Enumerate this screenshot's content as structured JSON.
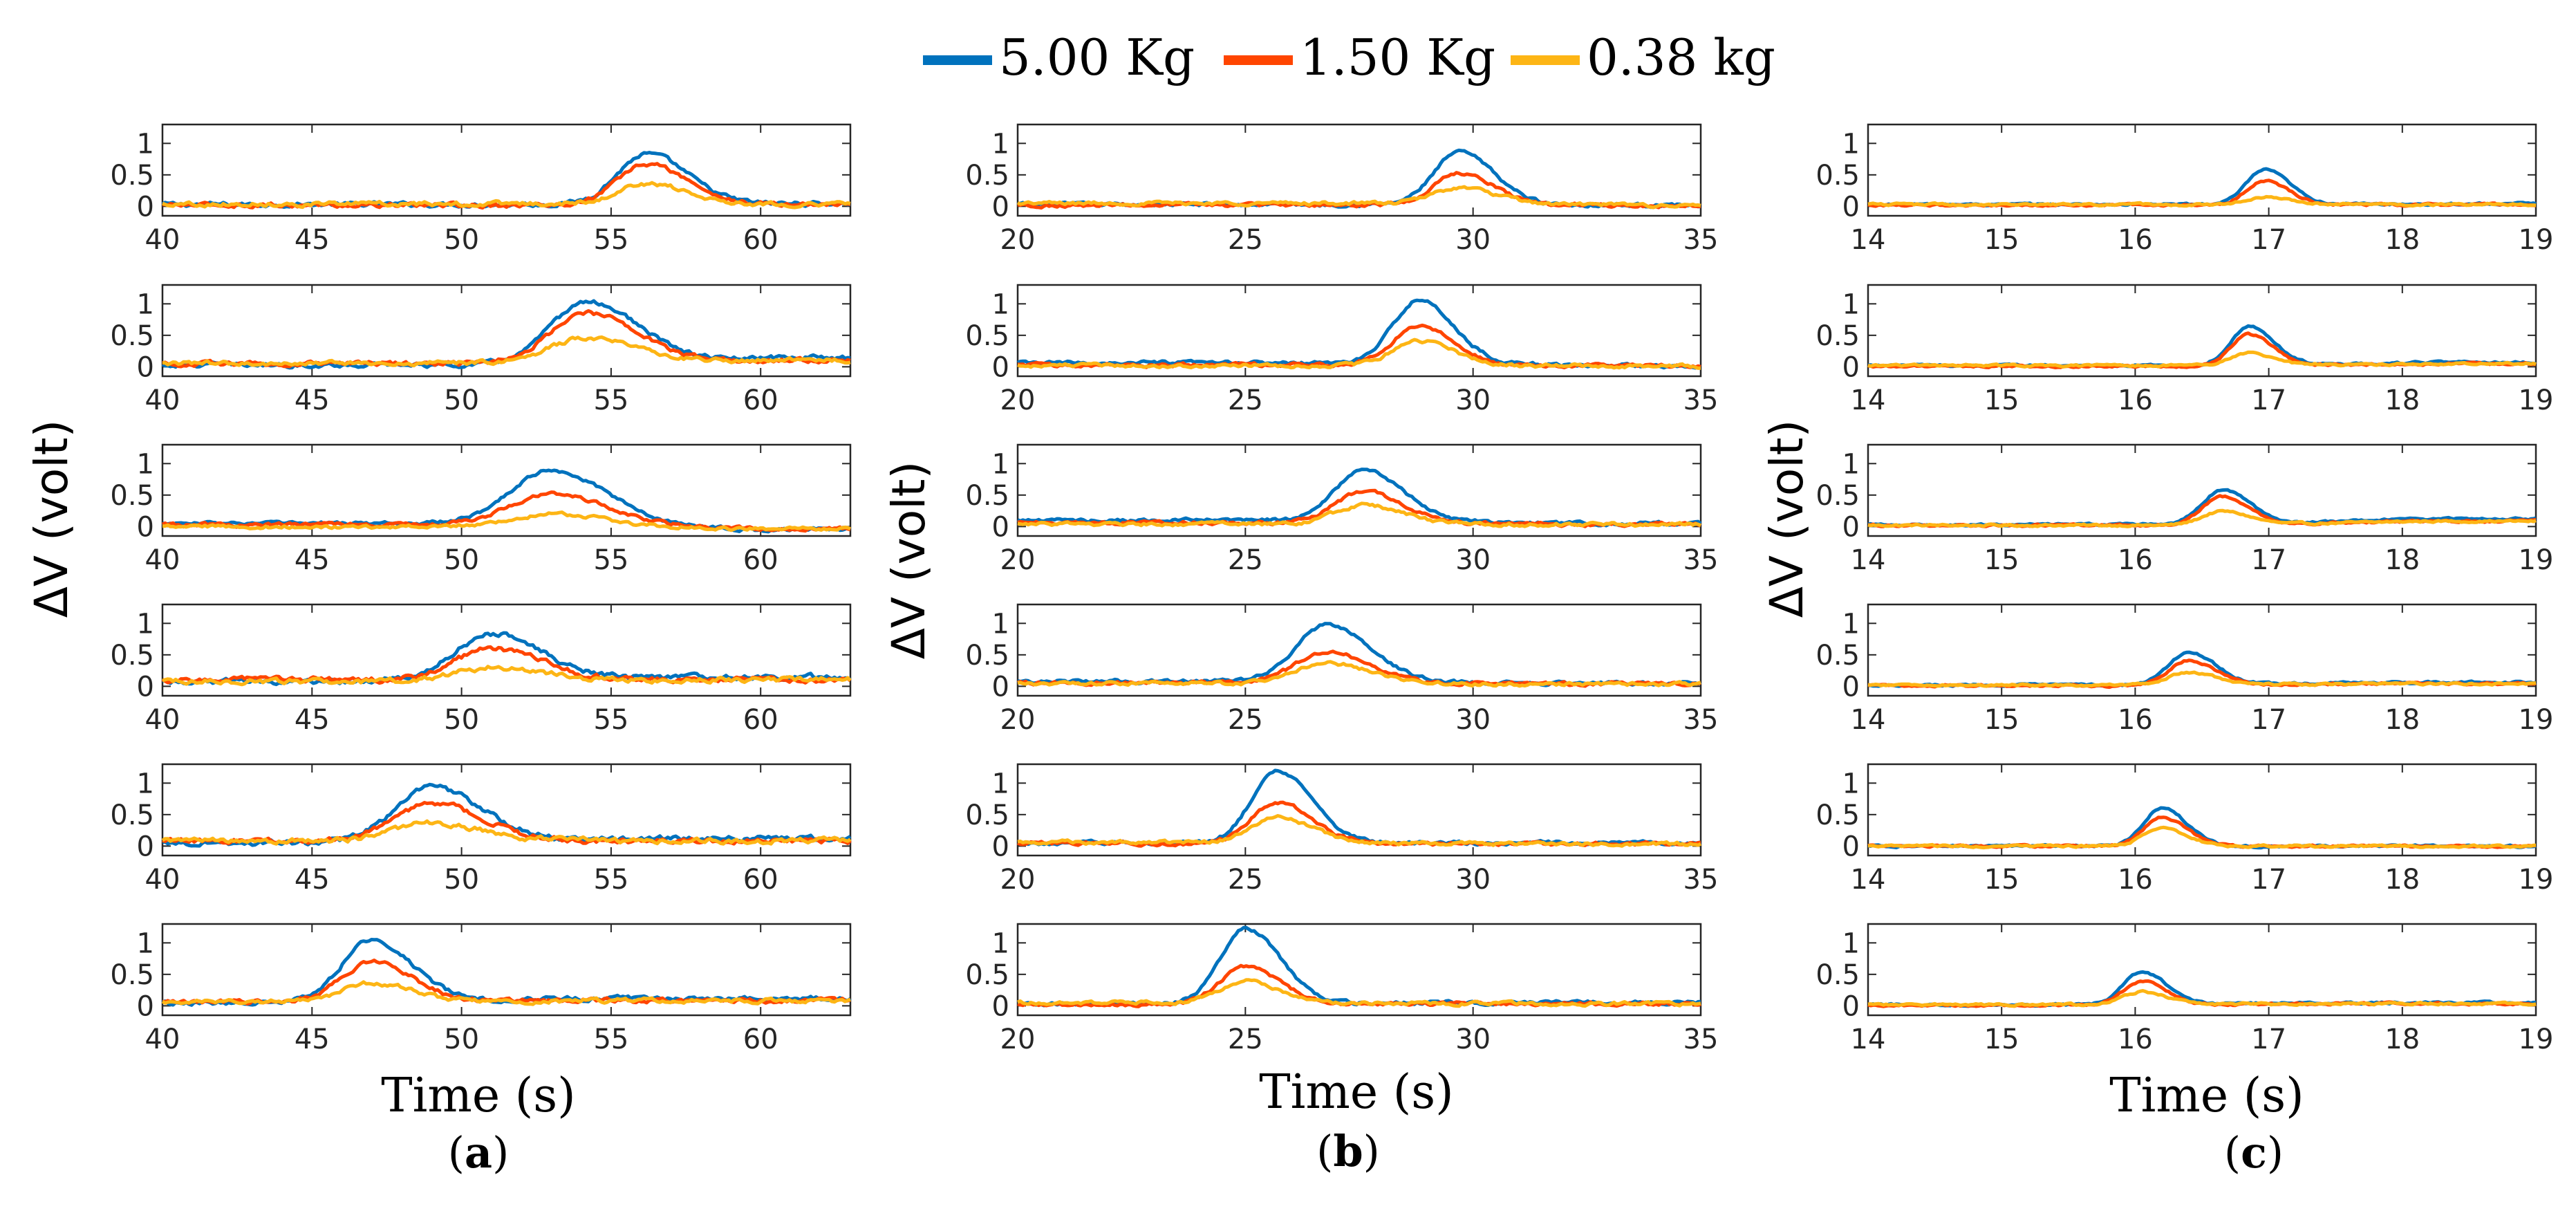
{
  "legend": [
    {
      "label": "5.00 Kg",
      "color": "#0072BD"
    },
    {
      "label": "1.50 Kg",
      "color": "#FF4500"
    },
    {
      "label": "0.38 kg",
      "color": "#FDB515"
    }
  ],
  "axis_text": {
    "ylabel": "ΔV (volt)",
    "xlabel": "Time (s)"
  },
  "panels": [
    {
      "open": "(",
      "letter": "a",
      "close": ")"
    },
    {
      "open": "(",
      "letter": "b",
      "close": ")"
    },
    {
      "open": "(",
      "letter": "c",
      "close": ")"
    }
  ],
  "chart_data": {
    "type": "line",
    "title": "",
    "xlabel": "Time (s)",
    "ylabel": "ΔV (volt)",
    "ylim": [
      -0.15,
      1.3
    ],
    "yticks": [
      0,
      0.5,
      1
    ],
    "ytick_labels": [
      "0",
      "0.5",
      "1"
    ],
    "series_names": [
      "5.00 Kg",
      "1.50 Kg",
      "0.38 kg"
    ],
    "columns": [
      {
        "id": "a",
        "xlim": [
          40,
          63
        ],
        "xticks": [
          40,
          45,
          50,
          55,
          60
        ],
        "rows": [
          {
            "baseline": [
              0.03,
              0.02,
              0.04
            ],
            "noise": 0.025,
            "peaks": [
              {
                "t": 56.2,
                "w": 1.6,
                "a": [
                  0.8,
                  0.65,
                  0.32
                ]
              }
            ],
            "tail": 0.05
          },
          {
            "baseline": [
              0.03,
              0.05,
              0.06
            ],
            "noise": 0.025,
            "peaks": [
              {
                "t": 54.2,
                "w": 2.0,
                "a": [
                  1.0,
                  0.8,
                  0.4
                ]
              }
            ],
            "tail": 0.15
          },
          {
            "baseline": [
              0.05,
              0.03,
              0.0
            ],
            "noise": 0.02,
            "peaks": [
              {
                "t": 53.0,
                "w": 2.2,
                "a": [
                  0.85,
                  0.5,
                  0.2
                ]
              }
            ],
            "tail": -0.05
          },
          {
            "baseline": [
              0.08,
              0.1,
              0.08
            ],
            "noise": 0.03,
            "peaks": [
              {
                "t": 51.0,
                "w": 2.0,
                "a": [
                  0.75,
                  0.5,
                  0.22
                ]
              }
            ],
            "tail": 0.15
          },
          {
            "baseline": [
              0.05,
              0.08,
              0.08
            ],
            "noise": 0.03,
            "peaks": [
              {
                "t": 49.0,
                "w": 2.0,
                "a": [
                  0.88,
                  0.6,
                  0.28
                ]
              }
            ],
            "tail": 0.12
          },
          {
            "baseline": [
              0.05,
              0.06,
              0.06
            ],
            "noise": 0.025,
            "peaks": [
              {
                "t": 47.0,
                "w": 1.6,
                "a": [
                  1.0,
                  0.65,
                  0.3
                ]
              }
            ],
            "tail": 0.12
          }
        ]
      },
      {
        "id": "b",
        "xlim": [
          20,
          35
        ],
        "xticks": [
          20,
          25,
          30,
          35
        ],
        "rows": [
          {
            "baseline": [
              0.03,
              0.02,
              0.05
            ],
            "noise": 0.02,
            "peaks": [
              {
                "t": 29.7,
                "w": 0.9,
                "a": [
                  0.83,
                  0.5,
                  0.25
                ]
              }
            ],
            "tail": 0.02
          },
          {
            "baseline": [
              0.06,
              0.03,
              0.02
            ],
            "noise": 0.02,
            "peaks": [
              {
                "t": 28.8,
                "w": 0.9,
                "a": [
                  1.0,
                  0.62,
                  0.4
                ]
              }
            ],
            "tail": 0.02
          },
          {
            "baseline": [
              0.1,
              0.06,
              0.04
            ],
            "noise": 0.02,
            "peaks": [
              {
                "t": 27.6,
                "w": 1.0,
                "a": [
                  0.8,
                  0.5,
                  0.3
                ]
              }
            ],
            "tail": 0.05
          },
          {
            "baseline": [
              0.08,
              0.05,
              0.05
            ],
            "noise": 0.02,
            "peaks": [
              {
                "t": 26.8,
                "w": 1.1,
                "a": [
                  0.9,
                  0.5,
                  0.32
                ]
              }
            ],
            "tail": 0.05
          },
          {
            "baseline": [
              0.05,
              0.04,
              0.06
            ],
            "noise": 0.02,
            "peaks": [
              {
                "t": 25.7,
                "w": 0.9,
                "a": [
                  1.15,
                  0.65,
                  0.4
                ]
              }
            ],
            "tail": 0.05
          },
          {
            "baseline": [
              0.03,
              0.02,
              0.05
            ],
            "noise": 0.02,
            "peaks": [
              {
                "t": 25.0,
                "w": 0.9,
                "a": [
                  1.2,
                  0.6,
                  0.35
                ]
              }
            ],
            "tail": 0.05
          }
        ]
      },
      {
        "id": "c",
        "xlim": [
          14,
          19
        ],
        "xticks": [
          14,
          15,
          16,
          17,
          18,
          19
        ],
        "rows": [
          {
            "baseline": [
              0.03,
              0.02,
              0.03
            ],
            "noise": 0.012,
            "peaks": [
              {
                "t": 16.97,
                "w": 0.22,
                "a": [
                  0.55,
                  0.38,
                  0.12
                ]
              }
            ],
            "tail": 0.04
          },
          {
            "baseline": [
              0.02,
              0.01,
              0.02
            ],
            "noise": 0.012,
            "peaks": [
              {
                "t": 16.85,
                "w": 0.22,
                "a": [
                  0.62,
                  0.5,
                  0.2
                ]
              }
            ],
            "tail": 0.07
          },
          {
            "baseline": [
              0.03,
              0.02,
              0.02
            ],
            "noise": 0.012,
            "peaks": [
              {
                "t": 16.65,
                "w": 0.24,
                "a": [
                  0.55,
                  0.45,
                  0.22
                ]
              }
            ],
            "tail": 0.12
          },
          {
            "baseline": [
              0.02,
              0.01,
              0.02
            ],
            "noise": 0.012,
            "peaks": [
              {
                "t": 16.4,
                "w": 0.24,
                "a": [
                  0.52,
                  0.4,
                  0.2
                ]
              }
            ],
            "tail": 0.06
          },
          {
            "baseline": [
              0.0,
              0.0,
              0.0
            ],
            "noise": 0.012,
            "peaks": [
              {
                "t": 16.2,
                "w": 0.22,
                "a": [
                  0.6,
                  0.45,
                  0.28
                ]
              }
            ],
            "tail": 0.0
          },
          {
            "baseline": [
              0.02,
              0.01,
              0.02
            ],
            "noise": 0.012,
            "peaks": [
              {
                "t": 16.05,
                "w": 0.22,
                "a": [
                  0.52,
                  0.38,
                  0.2
                ]
              }
            ],
            "tail": 0.05
          }
        ]
      }
    ]
  }
}
